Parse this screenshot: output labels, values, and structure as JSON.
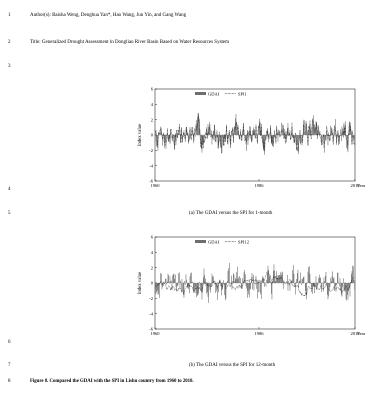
{
  "line_numbers": [
    "1",
    "2",
    "3",
    "4",
    "5",
    "6",
    "7",
    "8"
  ],
  "authors": "Author(s): Baisha Weng, Denghua Yan*, Hao Wang, Jun Yin, and Gang Wang",
  "title": "Title: Generalized Drought Assessment in Dongliao River Basin Based on Water Resources System",
  "figure_caption": "Figure 8. Compared the GDAI with the SPI in Lishu country from 1960 to 2010.",
  "chart_data": [
    {
      "type": "line",
      "caption": "(a) The GDAI versus the SPI for 1-month",
      "ylabel": "Index value",
      "xlabel": "Year",
      "x_ticks": [
        "1960",
        "1986",
        "2010"
      ],
      "y_ticks": [
        "6",
        "4",
        "2",
        "0",
        "-2",
        "-4",
        "-6"
      ],
      "ylim": [
        -6,
        6
      ],
      "xlim": [
        1960,
        2010
      ],
      "legend": {
        "placement": "top",
        "entries": [
          "GDAI",
          "SPI1"
        ]
      },
      "series": [
        {
          "name": "GDAI",
          "style": "bar",
          "color": "#6e6e6e"
        },
        {
          "name": "SPI1",
          "style": "dotted",
          "color": "#000000"
        }
      ],
      "seed": 7,
      "spi_scale": 1
    },
    {
      "type": "line",
      "caption": "(b) The GDAI versus the SPI for 12-month",
      "ylabel": "Index value",
      "xlabel": "Year",
      "x_ticks": [
        "1960",
        "1986",
        "2010"
      ],
      "y_ticks": [
        "6",
        "4",
        "2",
        "0",
        "-2",
        "-4",
        "-6"
      ],
      "ylim": [
        -6,
        6
      ],
      "xlim": [
        1960,
        2010
      ],
      "legend": {
        "placement": "top",
        "entries": [
          "GDAI",
          "SPI12"
        ]
      },
      "series": [
        {
          "name": "GDAI",
          "style": "bar",
          "color": "#6e6e6e"
        },
        {
          "name": "SPI12",
          "style": "dotted",
          "color": "#000000"
        }
      ],
      "seed": 21,
      "spi_scale": 12
    }
  ]
}
